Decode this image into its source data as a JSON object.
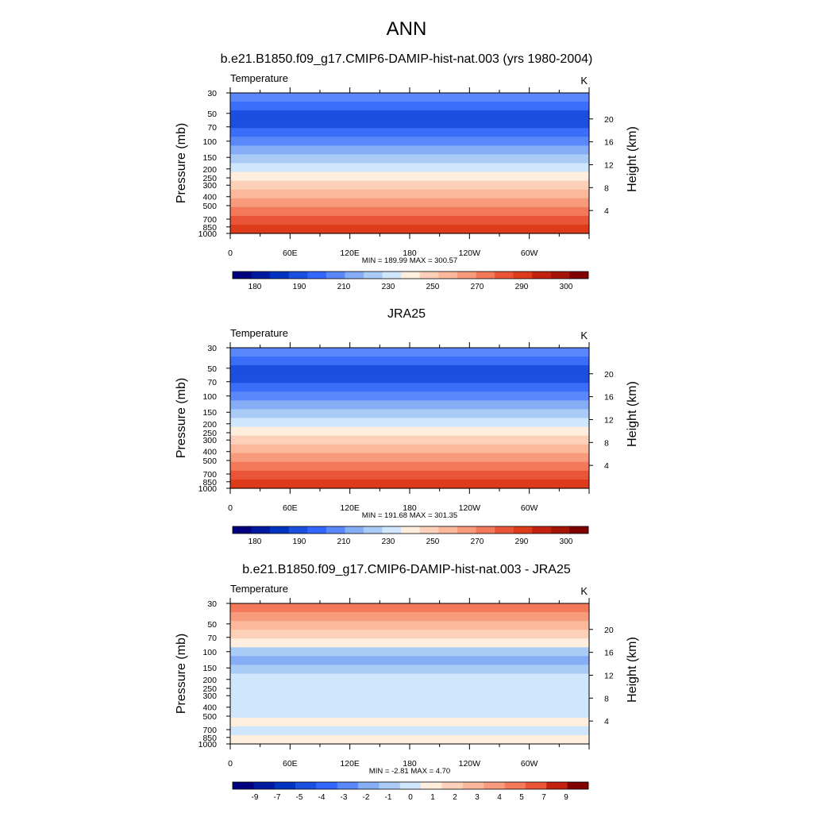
{
  "figure": {
    "title": "ANN"
  },
  "chart_data": [
    {
      "type": "heatmap",
      "title": "b.e21.B1850.f09_g17.CMIP6-DAMIP-hist-nat.003 (yrs 1980-2004)",
      "left_label": "Temperature",
      "unit": "K",
      "ylabel": "Pressure (mb)",
      "y2label": "Height (km)",
      "pressure_ticks": [
        "30",
        "50",
        "70",
        "100",
        "150",
        "200",
        "250",
        "300",
        "400",
        "500",
        "700",
        "850",
        "1000"
      ],
      "height_ticks": [
        "4",
        "8",
        "12",
        "16",
        "20"
      ],
      "lon_ticks": [
        "0",
        "60E",
        "120E",
        "180",
        "120W",
        "60W"
      ],
      "stats": "MIN = 189.99  MAX = 300.57",
      "colorbar_levels": [
        "180",
        "190",
        "210",
        "230",
        "250",
        "270",
        "290",
        "300"
      ],
      "colorbar_colors": [
        "#00007f",
        "#001a9f",
        "#0033bf",
        "#1a4fdf",
        "#3366ff",
        "#5a88fa",
        "#86aef6",
        "#aacbf6",
        "#d0e6fc",
        "#ffeedd",
        "#fdd1b9",
        "#fbb89b",
        "#f89a7c",
        "#f3795a",
        "#ea5537",
        "#dd3b1a",
        "#c32210",
        "#a41508",
        "#800000"
      ],
      "band_colors": [
        "#5a88fa",
        "#3b6ef8",
        "#1a4fdf",
        "#1a4fdf",
        "#3b6ef8",
        "#5a88fa",
        "#86aef6",
        "#aacbf6",
        "#d0e6fc",
        "#ffeedd",
        "#fdd1b9",
        "#fbb89b",
        "#f89a7c",
        "#f3795a",
        "#ea5537",
        "#dd3b1a"
      ]
    },
    {
      "type": "heatmap",
      "title": "JRA25",
      "left_label": "Temperature",
      "unit": "K",
      "ylabel": "Pressure (mb)",
      "y2label": "Height (km)",
      "pressure_ticks": [
        "30",
        "50",
        "70",
        "100",
        "150",
        "200",
        "250",
        "300",
        "400",
        "500",
        "700",
        "850",
        "1000"
      ],
      "height_ticks": [
        "4",
        "8",
        "12",
        "16",
        "20"
      ],
      "lon_ticks": [
        "0",
        "60E",
        "120E",
        "180",
        "120W",
        "60W"
      ],
      "stats": "MIN = 191.68  MAX = 301.35",
      "colorbar_levels": [
        "180",
        "190",
        "210",
        "230",
        "250",
        "270",
        "290",
        "300"
      ],
      "colorbar_colors": [
        "#00007f",
        "#001a9f",
        "#0033bf",
        "#1a4fdf",
        "#3366ff",
        "#5a88fa",
        "#86aef6",
        "#aacbf6",
        "#d0e6fc",
        "#ffeedd",
        "#fdd1b9",
        "#fbb89b",
        "#f89a7c",
        "#f3795a",
        "#ea5537",
        "#dd3b1a",
        "#c32210",
        "#a41508",
        "#800000"
      ],
      "band_colors": [
        "#5a88fa",
        "#3b6ef8",
        "#1a4fdf",
        "#1a4fdf",
        "#3b6ef8",
        "#5a88fa",
        "#86aef6",
        "#aacbf6",
        "#d0e6fc",
        "#ffeedd",
        "#fdd1b9",
        "#fbb89b",
        "#f89a7c",
        "#f3795a",
        "#ea5537",
        "#dd3b1a"
      ]
    },
    {
      "type": "heatmap",
      "title": "b.e21.B1850.f09_g17.CMIP6-DAMIP-hist-nat.003 - JRA25",
      "left_label": "Temperature",
      "unit": "K",
      "ylabel": "Pressure (mb)",
      "y2label": "Height (km)",
      "pressure_ticks": [
        "30",
        "50",
        "70",
        "100",
        "150",
        "200",
        "250",
        "300",
        "400",
        "500",
        "700",
        "850",
        "1000"
      ],
      "height_ticks": [
        "4",
        "8",
        "12",
        "16",
        "20"
      ],
      "lon_ticks": [
        "0",
        "60E",
        "120E",
        "180",
        "120W",
        "60W"
      ],
      "stats": "MIN = -2.81  MAX =  4.70",
      "colorbar_levels": [
        "-9",
        "-7",
        "-5",
        "-4",
        "-3",
        "-2",
        "-1",
        "0",
        "1",
        "2",
        "3",
        "4",
        "5",
        "7",
        "9"
      ],
      "colorbar_colors": [
        "#00007f",
        "#001a9f",
        "#0033bf",
        "#1a4fdf",
        "#3366ff",
        "#5a88fa",
        "#86aef6",
        "#aacbf6",
        "#d0e6fc",
        "#ffeedd",
        "#fdd1b9",
        "#fbb89b",
        "#f89a7c",
        "#f3795a",
        "#ea5537",
        "#c32210",
        "#800000"
      ],
      "band_colors": [
        "#f3795a",
        "#f89a7c",
        "#fbb89b",
        "#fdd1b9",
        "#ffeedd",
        "#aacbf6",
        "#86aef6",
        "#aacbf6",
        "#d0e6fc",
        "#d0e6fc",
        "#d0e6fc",
        "#d0e6fc",
        "#d0e6fc",
        "#ffeedd",
        "#d0e6fc",
        "#ffeedd"
      ]
    }
  ]
}
